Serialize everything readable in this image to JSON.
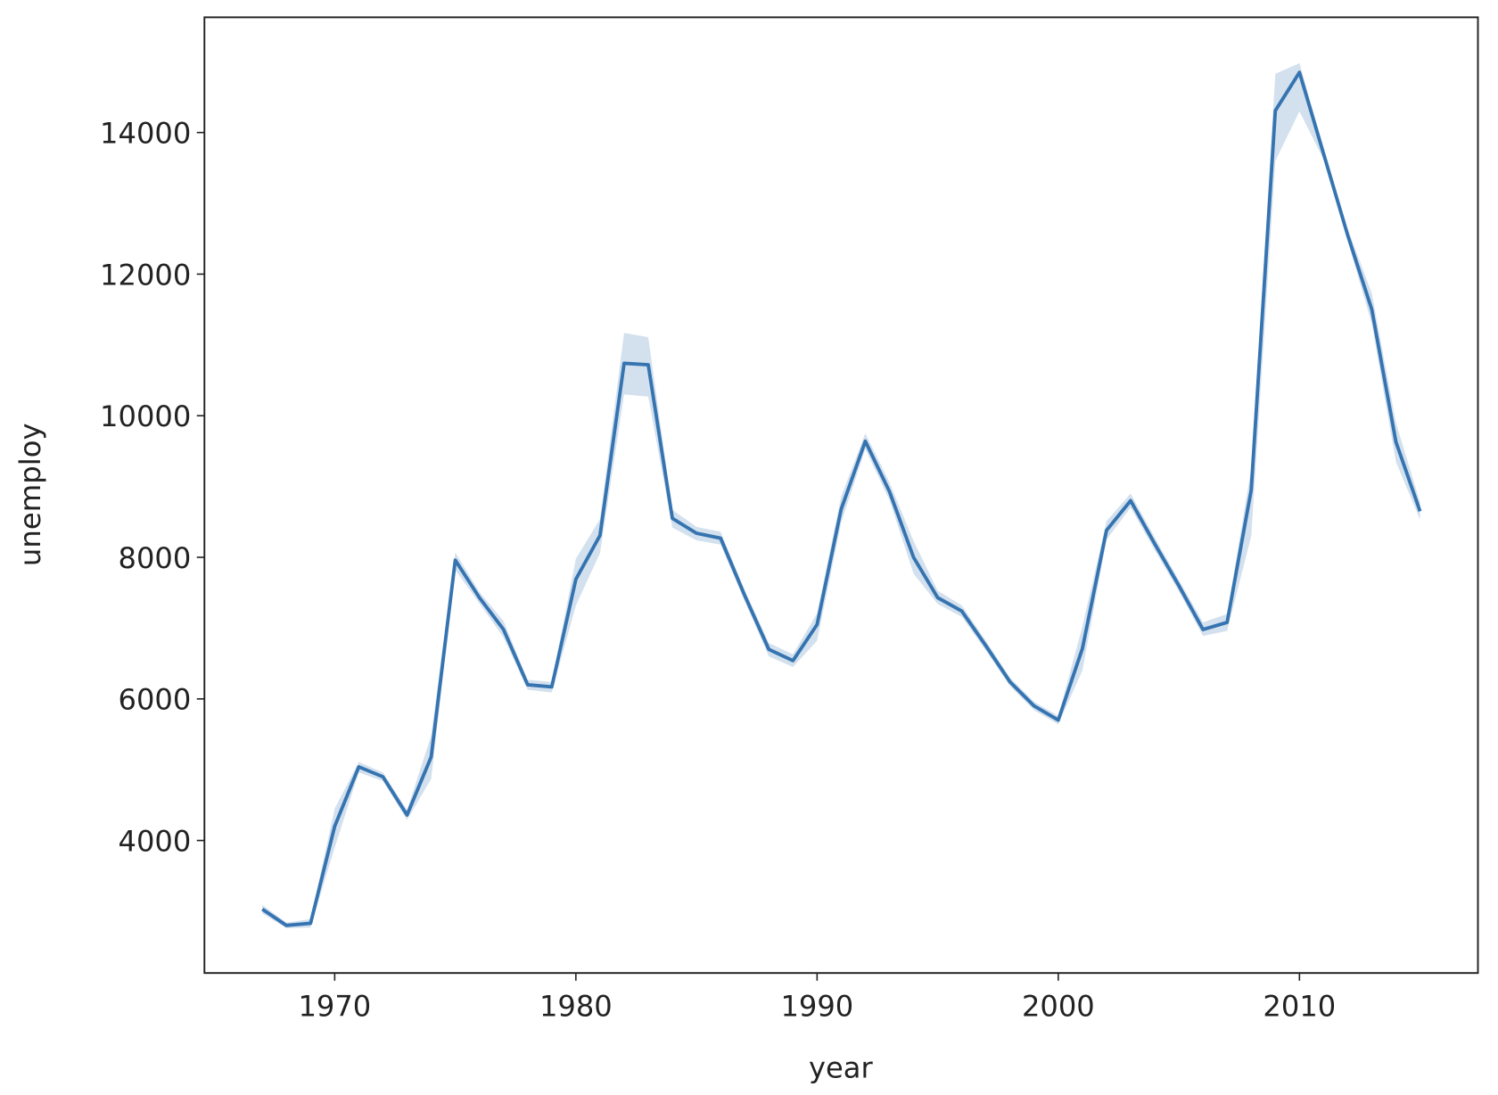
{
  "chart_data": {
    "type": "line",
    "xlabel": "year",
    "ylabel": "unemploy",
    "x": [
      1967,
      1968,
      1969,
      1970,
      1971,
      1972,
      1973,
      1974,
      1975,
      1976,
      1977,
      1978,
      1979,
      1980,
      1981,
      1982,
      1983,
      1984,
      1985,
      1986,
      1987,
      1988,
      1989,
      1990,
      1991,
      1992,
      1993,
      1994,
      1995,
      1996,
      1997,
      1998,
      1999,
      2000,
      2001,
      2002,
      2003,
      2004,
      2005,
      2006,
      2007,
      2008,
      2009,
      2010,
      2011,
      2012,
      2013,
      2014,
      2015
    ],
    "series": [
      {
        "color": "#3574b0",
        "values": [
          3030,
          2800,
          2830,
          4200,
          5040,
          4900,
          4360,
          5180,
          7960,
          7430,
          6980,
          6200,
          6170,
          7690,
          8310,
          10740,
          10720,
          8550,
          8340,
          8270,
          7460,
          6700,
          6540,
          7050,
          8680,
          9640,
          8930,
          8000,
          7430,
          7240,
          6750,
          6240,
          5900,
          5700,
          6710,
          8380,
          8800,
          8190,
          7600,
          6980,
          7080,
          8950,
          14310,
          14850,
          13700,
          12550,
          11500,
          9630,
          8650
        ],
        "lower": [
          2970,
          2760,
          2770,
          3900,
          4960,
          4840,
          4290,
          4870,
          7820,
          7350,
          6870,
          6130,
          6090,
          7320,
          8060,
          10300,
          10270,
          8420,
          8240,
          8180,
          7380,
          6600,
          6450,
          6820,
          8490,
          9530,
          8810,
          7770,
          7340,
          7160,
          6680,
          6180,
          5840,
          5640,
          6400,
          8250,
          8700,
          8100,
          7520,
          6890,
          6960,
          8300,
          13600,
          14300,
          13620,
          12470,
          11300,
          9350,
          8530
        ],
        "upper": [
          3090,
          2840,
          2890,
          4450,
          5110,
          4960,
          4430,
          5480,
          8070,
          7510,
          7100,
          6270,
          6240,
          7980,
          8540,
          11170,
          11110,
          8670,
          8430,
          8360,
          7540,
          6790,
          6630,
          7210,
          8860,
          9750,
          9060,
          8230,
          7530,
          7320,
          6820,
          6300,
          5960,
          5760,
          7020,
          8510,
          8900,
          8280,
          7680,
          7080,
          7200,
          9250,
          14830,
          14980,
          13790,
          12640,
          11730,
          9900,
          8780
        ]
      }
    ],
    "xlim": [
      1964.6,
      2017.4
    ],
    "ylim": [
      2128,
      15628
    ],
    "xticks": [
      1970,
      1980,
      1990,
      2000,
      2010
    ],
    "yticks": [
      4000,
      6000,
      8000,
      10000,
      12000,
      14000
    ],
    "grid": false
  }
}
